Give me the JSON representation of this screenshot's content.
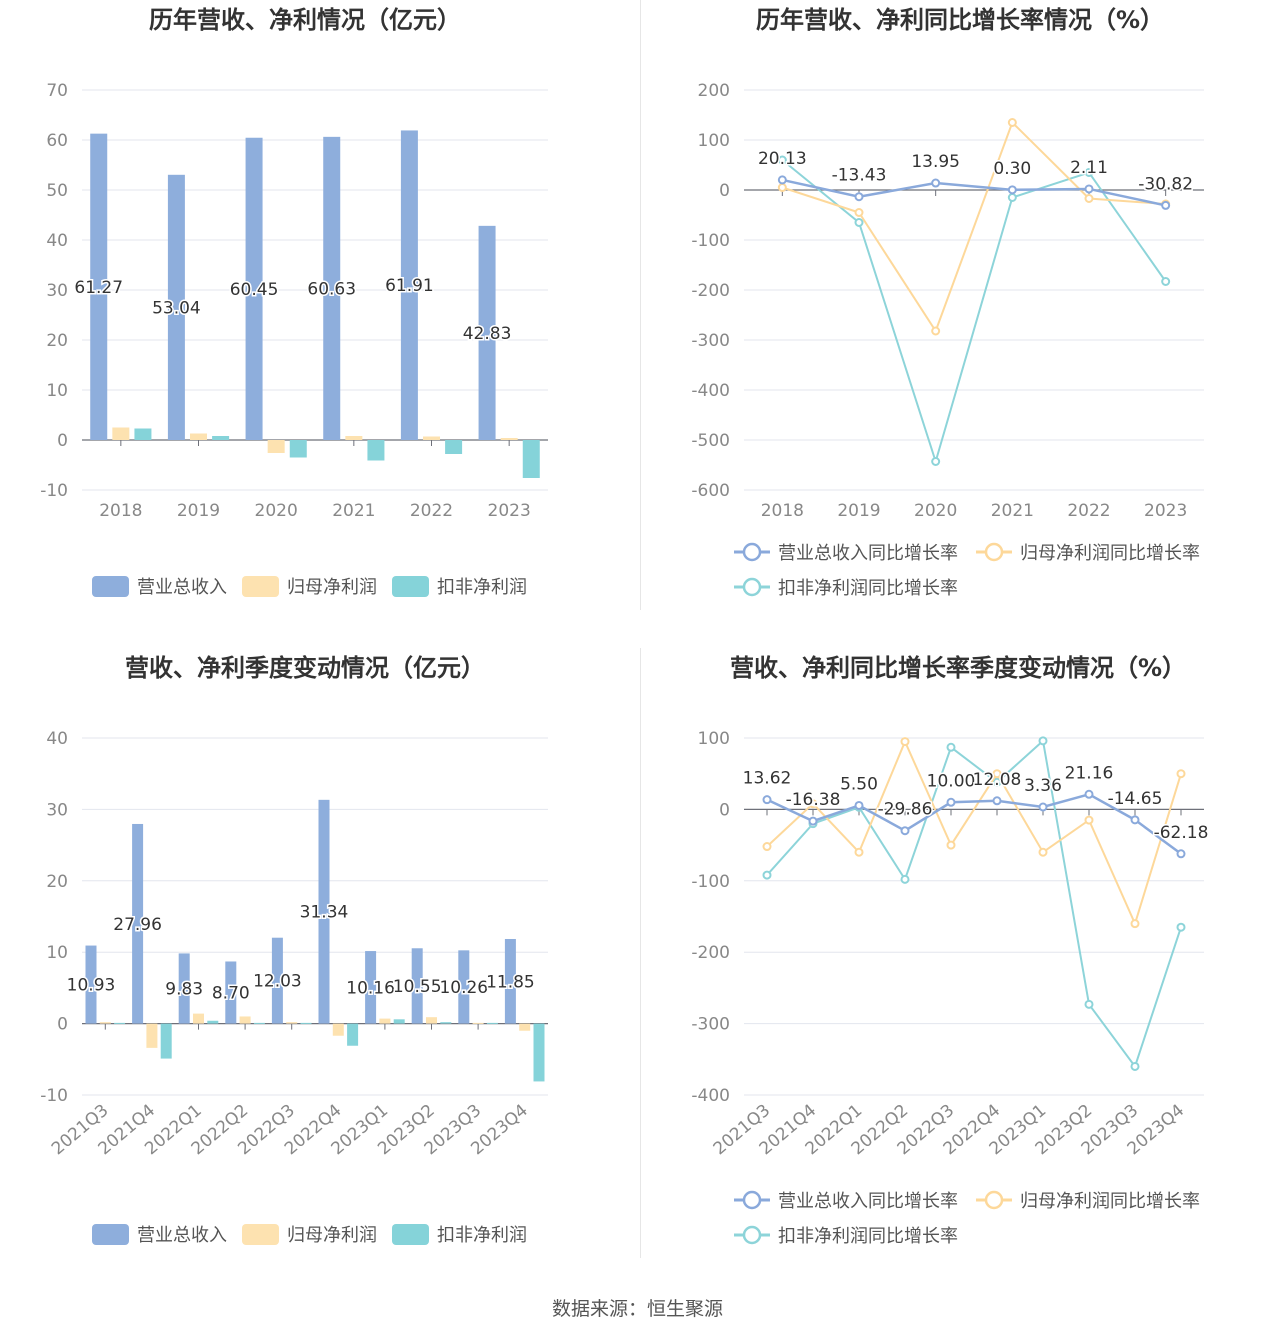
{
  "colors": {
    "revenue": "#8eaedc",
    "net_profit": "#fde2b0",
    "deducted_profit": "#85d3d9",
    "rev_growth_line": "#8aa9db",
    "np_growth_line": "#fdd89a",
    "dp_growth_line": "#8dd4d9"
  },
  "source_text": "数据来源：恒生聚源",
  "chart_data": [
    {
      "type": "bar",
      "title": "历年营收、净利情况（亿元）",
      "categories": [
        "2018",
        "2019",
        "2020",
        "2021",
        "2022",
        "2023"
      ],
      "ylim": [
        -10,
        70
      ],
      "yticks": [
        -10,
        0,
        10,
        20,
        30,
        40,
        50,
        60,
        70
      ],
      "grid": true,
      "legend": "bottom",
      "series": [
        {
          "name": "营业总收入",
          "color_key": "revenue",
          "values": [
            61.27,
            53.04,
            60.45,
            60.63,
            61.91,
            42.83
          ],
          "labels": [
            "61.27",
            "53.04",
            "60.45",
            "60.63",
            "61.91",
            "42.83"
          ]
        },
        {
          "name": "归母净利润",
          "color_key": "net_profit",
          "values": [
            2.5,
            1.3,
            -2.6,
            0.8,
            0.7,
            0.4
          ]
        },
        {
          "name": "扣非净利润",
          "color_key": "deducted_profit",
          "values": [
            2.3,
            0.8,
            -3.5,
            -4.1,
            -2.8,
            -7.6
          ]
        }
      ]
    },
    {
      "type": "line",
      "title": "历年营收、净利同比增长率情况（%）",
      "categories": [
        "2018",
        "2019",
        "2020",
        "2021",
        "2022",
        "2023"
      ],
      "ylim": [
        -600,
        200
      ],
      "yticks": [
        -600,
        -500,
        -400,
        -300,
        -200,
        -100,
        0,
        100,
        200
      ],
      "grid": true,
      "legend": "bottom",
      "series": [
        {
          "name": "营业总收入同比增长率",
          "color_key": "rev_growth_line",
          "values": [
            20.13,
            -13.43,
            13.95,
            0.3,
            2.11,
            -30.82
          ],
          "labels": [
            "20.13",
            "-13.43",
            "13.95",
            "0.30",
            "2.11",
            "-30.82"
          ]
        },
        {
          "name": "归母净利润同比增长率",
          "color_key": "np_growth_line",
          "values": [
            5,
            -45,
            -282,
            135,
            -17,
            -28
          ]
        },
        {
          "name": "扣非净利润同比增长率",
          "color_key": "dp_growth_line",
          "values": [
            60,
            -65,
            -543,
            -15,
            35,
            -183
          ]
        }
      ]
    },
    {
      "type": "bar",
      "title": "营收、净利季度变动情况（亿元）",
      "categories": [
        "2021Q3",
        "2021Q4",
        "2022Q1",
        "2022Q2",
        "2022Q3",
        "2022Q4",
        "2023Q1",
        "2023Q2",
        "2023Q3",
        "2023Q4"
      ],
      "ylim": [
        -10,
        40
      ],
      "yticks": [
        -10,
        0,
        10,
        20,
        30,
        40
      ],
      "grid": true,
      "legend": "bottom",
      "series": [
        {
          "name": "营业总收入",
          "color_key": "revenue",
          "values": [
            10.93,
            27.96,
            9.83,
            8.7,
            12.03,
            31.34,
            10.16,
            10.55,
            10.26,
            11.85
          ],
          "labels": [
            "10.93",
            "27.96",
            "9.83",
            "8.70",
            "12.03",
            "31.34",
            "10.16",
            "10.55",
            "10.26",
            "11.85"
          ]
        },
        {
          "name": "归母净利润",
          "color_key": "net_profit",
          "values": [
            0.2,
            -3.4,
            1.4,
            1.0,
            0.2,
            -1.7,
            0.7,
            0.9,
            0.1,
            -1.0
          ]
        },
        {
          "name": "扣非净利润",
          "color_key": "deducted_profit",
          "values": [
            0.1,
            -4.9,
            0.4,
            0.1,
            0.1,
            -3.1,
            0.6,
            0.2,
            0.1,
            -8.1
          ]
        }
      ]
    },
    {
      "type": "line",
      "title": "营收、净利同比增长率季度变动情况（%）",
      "categories": [
        "2021Q3",
        "2021Q4",
        "2022Q1",
        "2022Q2",
        "2022Q3",
        "2022Q4",
        "2023Q1",
        "2023Q2",
        "2023Q3",
        "2023Q4"
      ],
      "ylim": [
        -400,
        100
      ],
      "yticks": [
        -400,
        -300,
        -200,
        -100,
        0,
        100
      ],
      "grid": true,
      "legend": "bottom",
      "series": [
        {
          "name": "营业总收入同比增长率",
          "color_key": "rev_growth_line",
          "values": [
            13.62,
            -16.38,
            5.5,
            -29.86,
            10.0,
            12.08,
            3.36,
            21.16,
            -14.65,
            -62.18
          ],
          "labels": [
            "13.62",
            "-16.38",
            "5.50",
            "-29.86",
            "10.00",
            "12.08",
            "3.36",
            "21.16",
            "-14.65",
            "-62.18"
          ]
        },
        {
          "name": "归母净利润同比增长率",
          "color_key": "np_growth_line",
          "values": [
            -52,
            8,
            -60,
            95,
            -50,
            50,
            -60,
            -15,
            -160,
            50
          ]
        },
        {
          "name": "扣非净利润同比增长率",
          "color_key": "dp_growth_line",
          "values": [
            -92,
            -20,
            3,
            -98,
            87,
            38,
            96,
            -273,
            -360,
            -165
          ]
        }
      ]
    }
  ]
}
